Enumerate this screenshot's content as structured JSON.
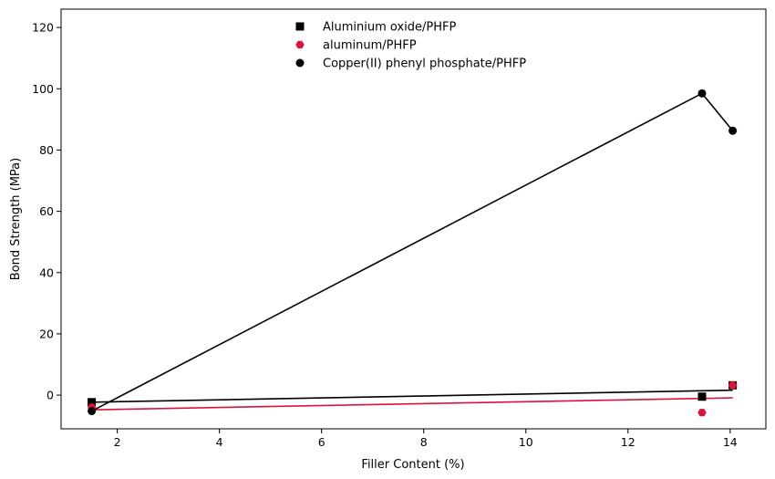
{
  "chart_data": {
    "type": "scatter",
    "title": "",
    "xlabel": "Filler Content (%)",
    "ylabel": "Bond Strength (MPa)",
    "xlim": [
      0.9,
      14.7
    ],
    "ylim": [
      -11,
      126
    ],
    "xticks": [
      2,
      4,
      6,
      8,
      10,
      12,
      14
    ],
    "yticks": [
      0,
      20,
      40,
      60,
      80,
      100,
      120
    ],
    "grid": false,
    "legend_position": "top-center",
    "series": [
      {
        "name": "Aluminium oxide/PHFP",
        "marker": "square",
        "color": "#000000",
        "points": [
          {
            "x": 1.5,
            "y": -2.3
          },
          {
            "x": 13.45,
            "y": -0.5
          },
          {
            "x": 14.05,
            "y": 3.2
          }
        ],
        "fit_line": {
          "color": "#000000",
          "points": [
            {
              "x": 1.5,
              "y": -2.3
            },
            {
              "x": 14.05,
              "y": 1.6
            }
          ]
        }
      },
      {
        "name": "aluminum/PHFP",
        "marker": "hexagon",
        "color": "#dc143c",
        "points": [
          {
            "x": 1.5,
            "y": -4.0
          },
          {
            "x": 13.45,
            "y": -5.7
          },
          {
            "x": 14.05,
            "y": 3.2
          }
        ],
        "fit_line": {
          "color": "#dc143c",
          "points": [
            {
              "x": 1.5,
              "y": -4.8
            },
            {
              "x": 14.05,
              "y": -0.9
            }
          ]
        }
      },
      {
        "name": "Copper(II) phenyl phosphate/PHFP",
        "marker": "circle",
        "color": "#000000",
        "points": [
          {
            "x": 1.5,
            "y": -5.2
          },
          {
            "x": 13.45,
            "y": 98.5
          },
          {
            "x": 14.05,
            "y": 86.3
          }
        ],
        "connect_line": {
          "color": "#000000",
          "points": [
            {
              "x": 1.5,
              "y": -5.2
            },
            {
              "x": 13.45,
              "y": 98.5
            },
            {
              "x": 14.05,
              "y": 86.3
            }
          ]
        }
      }
    ]
  }
}
